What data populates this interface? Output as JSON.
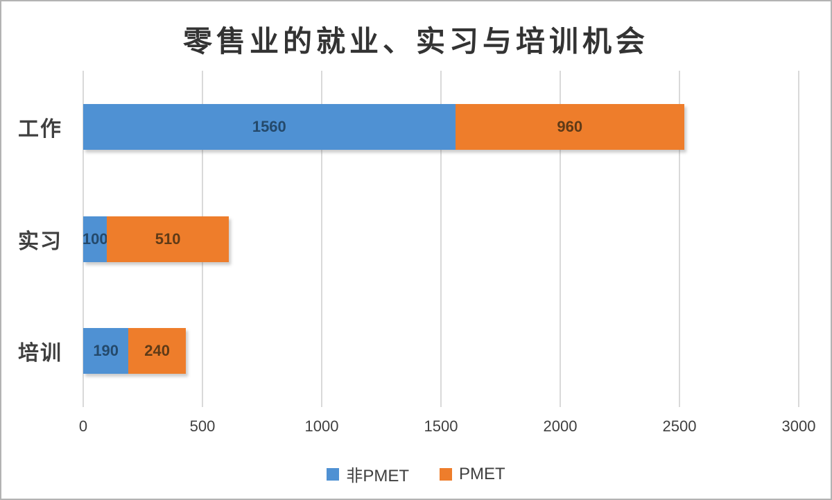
{
  "title": "零售业的就业、实习与培训机会",
  "colors": {
    "series_blue": "#4F91D3",
    "series_orange": "#EE7D2B",
    "label_on_blue": "#24496B",
    "label_on_orange": "#5E3A17",
    "axis_text": "#3f3f3f",
    "gridline": "#d9d9d9",
    "title_text": "#333333",
    "frame_border": "#b3b3b3"
  },
  "chart_data": {
    "type": "bar",
    "orientation": "horizontal",
    "stacked": true,
    "title": "零售业的就业、实习与培训机会",
    "categories": [
      "工作",
      "实习",
      "培训"
    ],
    "series": [
      {
        "name": "非PMET",
        "color": "#4F91D3",
        "label_color": "#24496B",
        "values": [
          1560,
          100,
          190
        ]
      },
      {
        "name": "PMET",
        "color": "#EE7D2B",
        "label_color": "#5E3A17",
        "values": [
          960,
          510,
          240
        ]
      }
    ],
    "xlim": [
      0,
      3000
    ],
    "xticks": [
      0,
      500,
      1000,
      1500,
      2000,
      2500,
      3000
    ],
    "xlabel": "",
    "ylabel": "",
    "grid": "vertical",
    "legend_position": "bottom",
    "data_labels": "inside-center"
  }
}
